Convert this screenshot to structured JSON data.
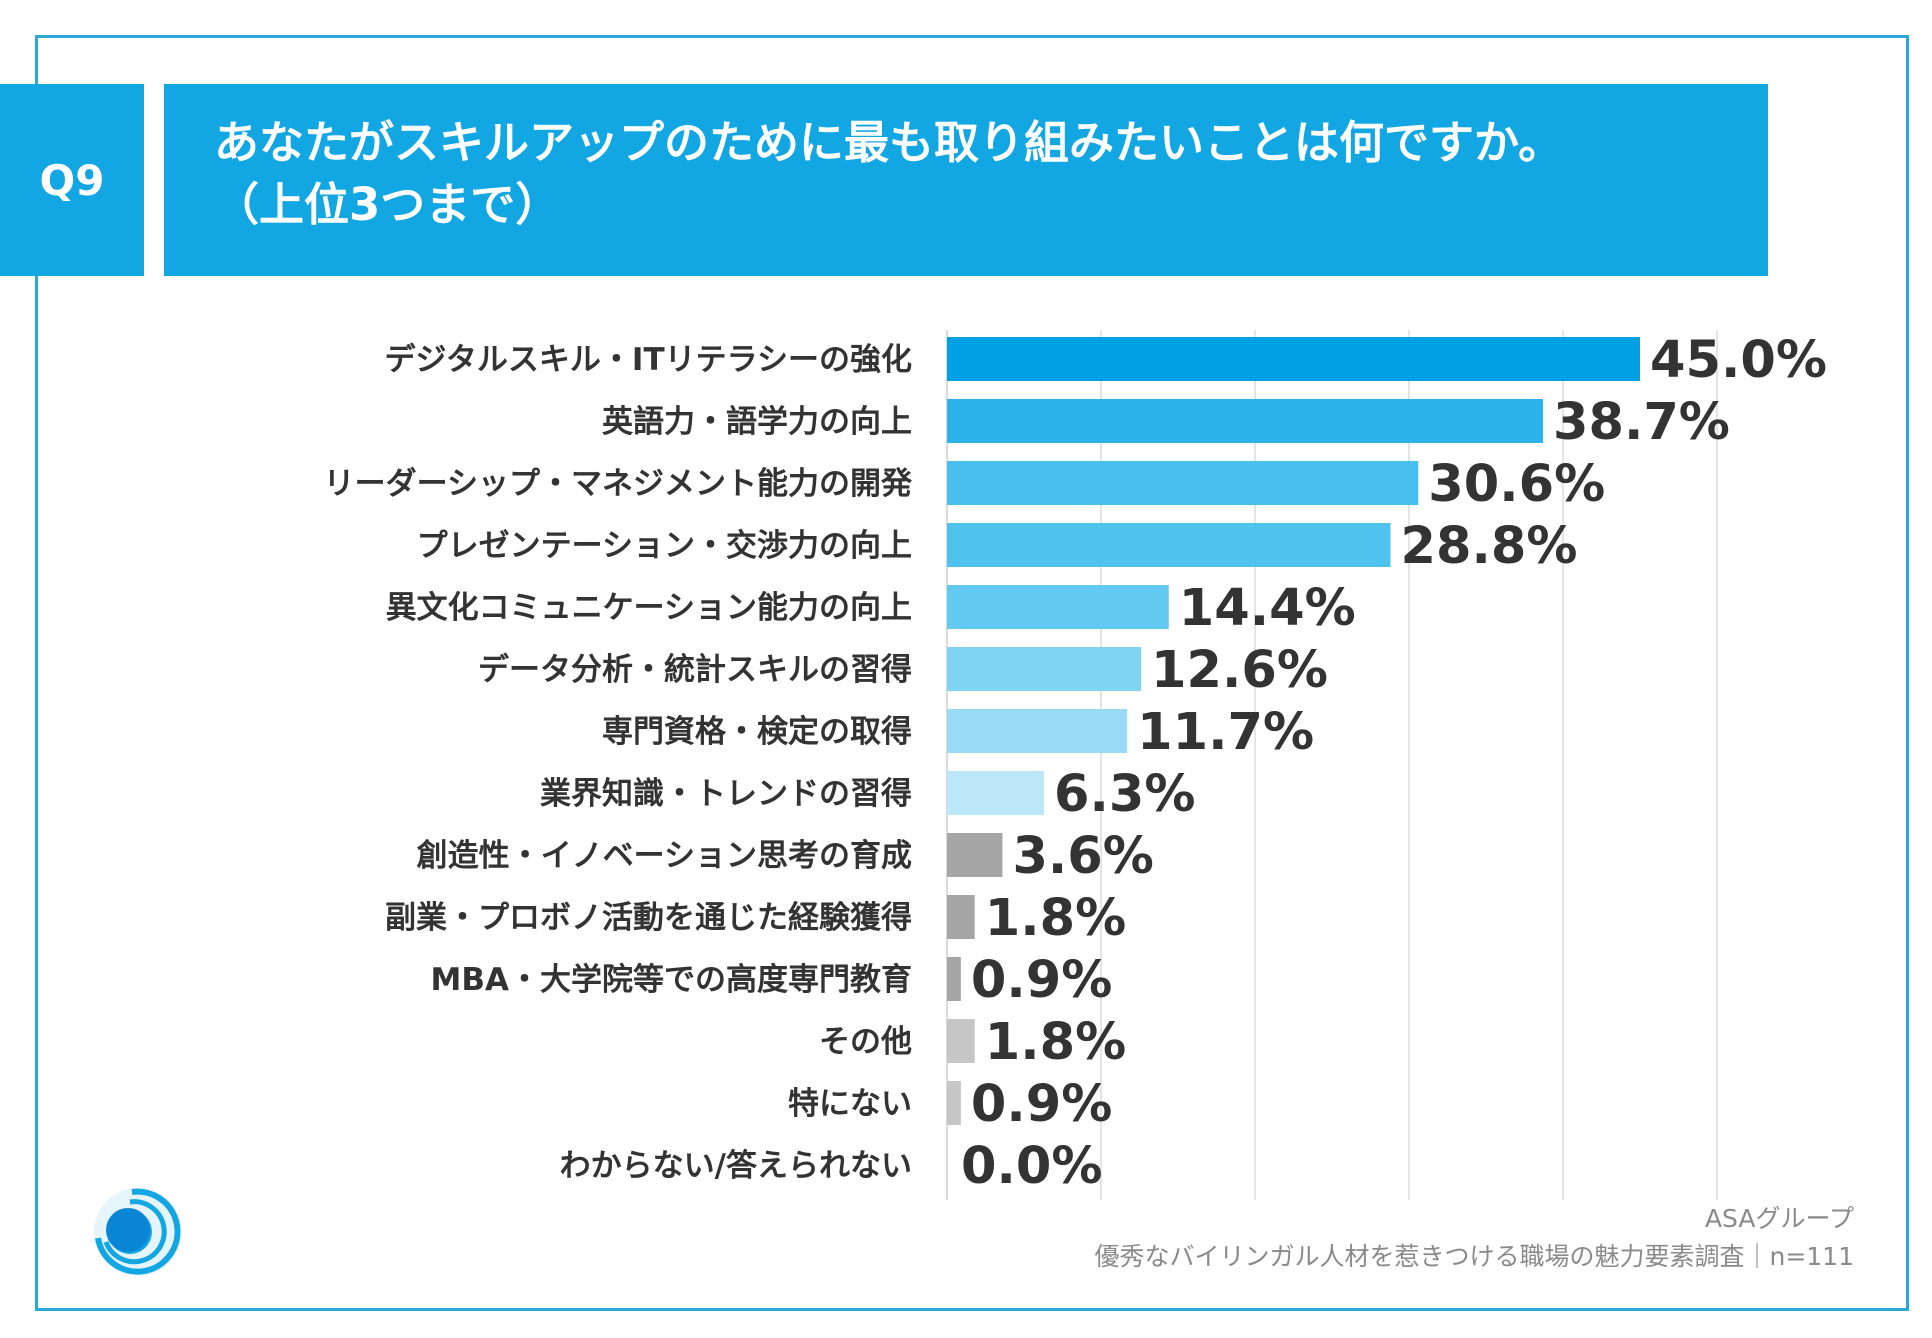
{
  "header": {
    "badge": "Q9",
    "question_line1": "あなたがスキルアップのために最も取り組みたいことは何ですか。",
    "question_line2": "（上位3つまで）"
  },
  "footer": {
    "source": "ASAグループ",
    "survey": "優秀なバイリンガル人材を惹きつける職場の魅力要素調査｜n=111"
  },
  "chart_data": {
    "type": "bar",
    "orientation": "horizontal",
    "categories": [
      "デジタルスキル・ITリテラシーの強化",
      "英語力・語学力の向上",
      "リーダーシップ・マネジメント能力の開発",
      "プレゼンテーション・交渉力の向上",
      "異文化コミュニケーション能力の向上",
      "データ分析・統計スキルの習得",
      "専門資格・検定の取得",
      "業界知識・トレンドの習得",
      "創造性・イノベーション思考の育成",
      "副業・プロボノ活動を通じた経験獲得",
      "MBA・大学院等での高度専門教育",
      "その他",
      "特にない",
      "わからない/答えられない"
    ],
    "values": [
      45.0,
      38.7,
      30.6,
      28.8,
      14.4,
      12.6,
      11.7,
      6.3,
      3.6,
      1.8,
      0.9,
      1.8,
      0.9,
      0.0
    ],
    "value_labels": [
      "45.0%",
      "38.7%",
      "30.6%",
      "28.8%",
      "14.4%",
      "12.6%",
      "11.7%",
      "6.3%",
      "3.6%",
      "1.8%",
      "0.9%",
      "1.8%",
      "0.9%",
      "0.0%"
    ],
    "colors": [
      "#00a0e4",
      "#2cb2ea",
      "#48bfed",
      "#4fc2ee",
      "#62caf0",
      "#80d4f3",
      "#9adcf5",
      "#bbe7f8",
      "#a6a6a6",
      "#a6a6a6",
      "#a6a6a6",
      "#c6c6c6",
      "#c6c6c6",
      "#c6c6c6"
    ],
    "xlim": [
      0,
      50
    ],
    "grid": true,
    "value_format": "percent"
  }
}
